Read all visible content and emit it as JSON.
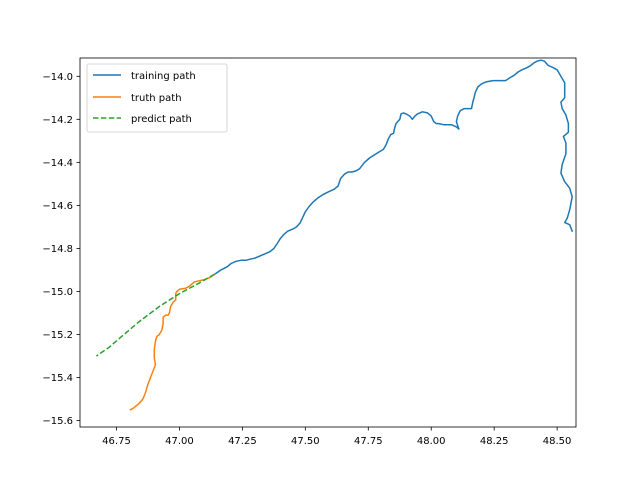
{
  "chart_data": {
    "type": "line",
    "title": "",
    "xlabel": "",
    "ylabel": "",
    "xlim": [
      46.605,
      48.575
    ],
    "ylim": [
      -15.63,
      -13.915
    ],
    "xticks": [
      46.75,
      47.0,
      47.25,
      47.5,
      47.75,
      48.0,
      48.25,
      48.5
    ],
    "xtick_labels": [
      "46.75",
      "47.00",
      "47.25",
      "47.50",
      "47.75",
      "48.00",
      "48.25",
      "48.50"
    ],
    "yticks": [
      -14.0,
      -14.2,
      -14.4,
      -14.6,
      -14.8,
      -15.0,
      -15.2,
      -15.4,
      -15.6
    ],
    "ytick_labels": [
      "−14.0",
      "−14.2",
      "−14.4",
      "−14.6",
      "−14.8",
      "−15.0",
      "−15.2",
      "−15.4",
      "−15.6"
    ],
    "grid": false,
    "legend_position": "upper-left",
    "series": [
      {
        "name": "training path",
        "color": "#1f77b4",
        "style": "solid",
        "points": [
          [
            48.56,
            -14.72
          ],
          [
            48.55,
            -14.69
          ],
          [
            48.53,
            -14.68
          ],
          [
            48.54,
            -14.66
          ],
          [
            48.55,
            -14.62
          ],
          [
            48.56,
            -14.56
          ],
          [
            48.55,
            -14.52
          ],
          [
            48.53,
            -14.49
          ],
          [
            48.515,
            -14.45
          ],
          [
            48.52,
            -14.41
          ],
          [
            48.535,
            -14.36
          ],
          [
            48.535,
            -14.31
          ],
          [
            48.525,
            -14.28
          ],
          [
            48.545,
            -14.26
          ],
          [
            48.545,
            -14.22
          ],
          [
            48.535,
            -14.18
          ],
          [
            48.52,
            -14.15
          ],
          [
            48.515,
            -14.12
          ],
          [
            48.53,
            -14.1
          ],
          [
            48.53,
            -14.03
          ],
          [
            48.515,
            -14.0
          ],
          [
            48.5,
            -13.97
          ],
          [
            48.485,
            -13.96
          ],
          [
            48.465,
            -13.95
          ],
          [
            48.45,
            -13.93
          ],
          [
            48.435,
            -13.925
          ],
          [
            48.42,
            -13.93
          ],
          [
            48.405,
            -13.94
          ],
          [
            48.395,
            -13.95
          ],
          [
            48.38,
            -13.96
          ],
          [
            48.36,
            -13.97
          ],
          [
            48.345,
            -13.98
          ],
          [
            48.33,
            -13.995
          ],
          [
            48.315,
            -14.005
          ],
          [
            48.295,
            -14.02
          ],
          [
            48.275,
            -14.02
          ],
          [
            48.245,
            -14.02
          ],
          [
            48.22,
            -14.025
          ],
          [
            48.2,
            -14.035
          ],
          [
            48.185,
            -14.05
          ],
          [
            48.175,
            -14.075
          ],
          [
            48.17,
            -14.1
          ],
          [
            48.165,
            -14.12
          ],
          [
            48.16,
            -14.15
          ],
          [
            48.145,
            -14.15
          ],
          [
            48.13,
            -14.15
          ],
          [
            48.115,
            -14.16
          ],
          [
            48.105,
            -14.185
          ],
          [
            48.1,
            -14.21
          ],
          [
            48.105,
            -14.23
          ],
          [
            48.11,
            -14.245
          ],
          [
            48.1,
            -14.235
          ],
          [
            48.08,
            -14.225
          ],
          [
            48.05,
            -14.225
          ],
          [
            48.03,
            -14.22
          ],
          [
            48.02,
            -14.22
          ],
          [
            48.01,
            -14.21
          ],
          [
            48.0,
            -14.185
          ],
          [
            47.985,
            -14.17
          ],
          [
            47.965,
            -14.165
          ],
          [
            47.945,
            -14.175
          ],
          [
            47.935,
            -14.185
          ],
          [
            47.925,
            -14.2
          ],
          [
            47.915,
            -14.185
          ],
          [
            47.9,
            -14.175
          ],
          [
            47.89,
            -14.17
          ],
          [
            47.88,
            -14.175
          ],
          [
            47.875,
            -14.2
          ],
          [
            47.86,
            -14.22
          ],
          [
            47.855,
            -14.24
          ],
          [
            47.85,
            -14.265
          ],
          [
            47.84,
            -14.27
          ],
          [
            47.83,
            -14.29
          ],
          [
            47.82,
            -14.32
          ],
          [
            47.81,
            -14.34
          ],
          [
            47.795,
            -14.35
          ],
          [
            47.775,
            -14.365
          ],
          [
            47.755,
            -14.38
          ],
          [
            47.735,
            -14.4
          ],
          [
            47.715,
            -14.43
          ],
          [
            47.7,
            -14.44
          ],
          [
            47.685,
            -14.445
          ],
          [
            47.67,
            -14.445
          ],
          [
            47.655,
            -14.455
          ],
          [
            47.64,
            -14.475
          ],
          [
            47.63,
            -14.51
          ],
          [
            47.615,
            -14.525
          ],
          [
            47.595,
            -14.535
          ],
          [
            47.57,
            -14.55
          ],
          [
            47.55,
            -14.565
          ],
          [
            47.53,
            -14.585
          ],
          [
            47.515,
            -14.605
          ],
          [
            47.5,
            -14.63
          ],
          [
            47.49,
            -14.655
          ],
          [
            47.48,
            -14.68
          ],
          [
            47.465,
            -14.7
          ],
          [
            47.45,
            -14.71
          ],
          [
            47.43,
            -14.72
          ],
          [
            47.415,
            -14.735
          ],
          [
            47.4,
            -14.755
          ],
          [
            47.39,
            -14.775
          ],
          [
            47.375,
            -14.8
          ],
          [
            47.36,
            -14.815
          ],
          [
            47.34,
            -14.825
          ],
          [
            47.32,
            -14.835
          ],
          [
            47.3,
            -14.845
          ],
          [
            47.28,
            -14.85
          ],
          [
            47.265,
            -14.855
          ],
          [
            47.245,
            -14.855
          ],
          [
            47.225,
            -14.86
          ],
          [
            47.205,
            -14.87
          ],
          [
            47.19,
            -14.885
          ],
          [
            47.165,
            -14.9
          ],
          [
            47.14,
            -14.92
          ]
        ]
      },
      {
        "name": "truth path",
        "color": "#ff7f0e",
        "style": "solid",
        "points": [
          [
            47.14,
            -14.92
          ],
          [
            47.12,
            -14.935
          ],
          [
            47.1,
            -14.945
          ],
          [
            47.08,
            -14.95
          ],
          [
            47.06,
            -14.955
          ],
          [
            47.05,
            -14.965
          ],
          [
            47.04,
            -14.975
          ],
          [
            47.025,
            -14.985
          ],
          [
            47.0,
            -14.99
          ],
          [
            46.99,
            -15.0
          ],
          [
            46.985,
            -15.01
          ],
          [
            46.985,
            -15.04
          ],
          [
            46.975,
            -15.05
          ],
          [
            46.965,
            -15.07
          ],
          [
            46.96,
            -15.1
          ],
          [
            46.955,
            -15.11
          ],
          [
            46.945,
            -15.11
          ],
          [
            46.935,
            -15.12
          ],
          [
            46.935,
            -15.15
          ],
          [
            46.93,
            -15.18
          ],
          [
            46.92,
            -15.2
          ],
          [
            46.91,
            -15.21
          ],
          [
            46.905,
            -15.23
          ],
          [
            46.9,
            -15.27
          ],
          [
            46.9,
            -15.31
          ],
          [
            46.905,
            -15.34
          ],
          [
            46.895,
            -15.37
          ],
          [
            46.885,
            -15.4
          ],
          [
            46.875,
            -15.43
          ],
          [
            46.865,
            -15.47
          ],
          [
            46.855,
            -15.5
          ],
          [
            46.84,
            -15.52
          ],
          [
            46.82,
            -15.54
          ],
          [
            46.805,
            -15.55
          ]
        ]
      },
      {
        "name": "predict path",
        "color": "#2ca02c",
        "style": "dashed",
        "points": [
          [
            47.14,
            -14.92
          ],
          [
            47.08,
            -14.96
          ],
          [
            47.0,
            -15.01
          ],
          [
            46.92,
            -15.07
          ],
          [
            46.84,
            -15.14
          ],
          [
            46.77,
            -15.21
          ],
          [
            46.72,
            -15.26
          ],
          [
            46.67,
            -15.3
          ]
        ]
      }
    ]
  }
}
